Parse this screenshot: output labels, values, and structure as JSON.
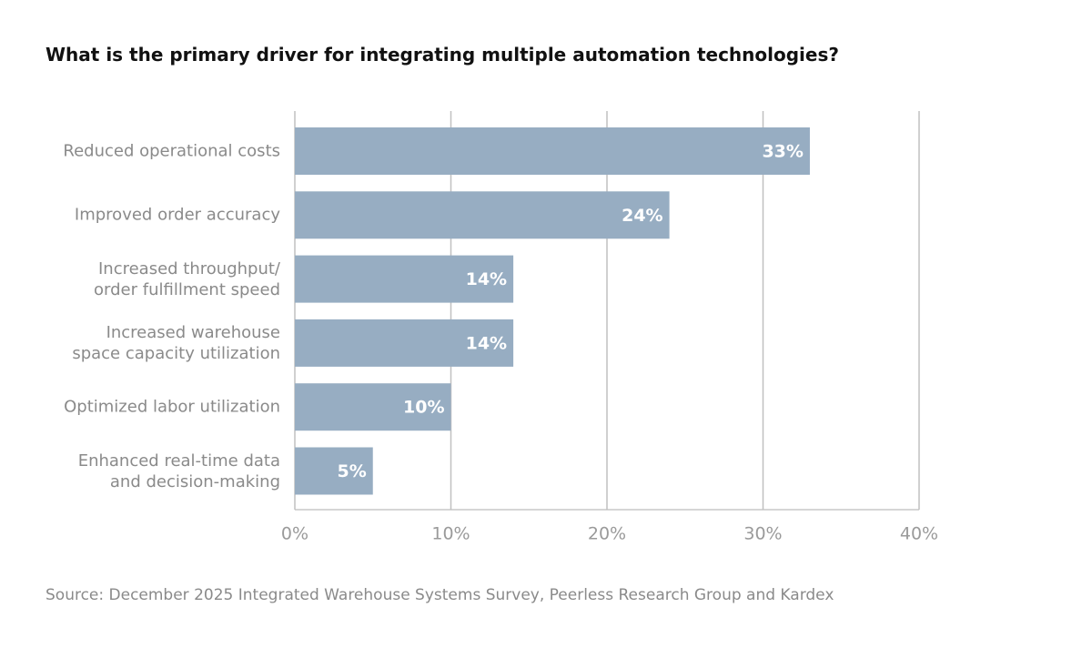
{
  "chart_data": {
    "type": "hbar",
    "title": "What is the primary driver for integrating multiple automation technologies?",
    "categories": [
      "Reduced operational costs",
      "Improved order accuracy",
      "Increased throughput/\norder fulfillment speed",
      "Increased warehouse\nspace capacity utilization",
      "Optimized labor utilization",
      "Enhanced real-time data\nand decision-making"
    ],
    "values": [
      33,
      24,
      14,
      14,
      10,
      5
    ],
    "value_labels": [
      "33%",
      "24%",
      "14%",
      "14%",
      "10%",
      "5%"
    ],
    "color": "#97adc2",
    "xlim": [
      0,
      40
    ],
    "xticks": [
      {
        "value": 0,
        "label": "0%"
      },
      {
        "value": 10,
        "label": "10%"
      },
      {
        "value": 20,
        "label": "20%"
      },
      {
        "value": 30,
        "label": "30%"
      },
      {
        "value": 40,
        "label": "40%"
      }
    ],
    "grid": true,
    "source": "Source: December 2025 Integrated Warehouse Systems Survey, Peerless Research Group and Kardex"
  }
}
